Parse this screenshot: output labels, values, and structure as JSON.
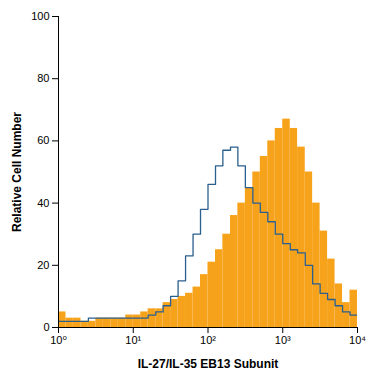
{
  "chart_data": {
    "type": "histogram",
    "x_label": "IL-27/IL-35 EB13 Subunit",
    "y_label": "Relative Cell Number",
    "log": "x",
    "grid": false,
    "xlim": [
      1,
      10000
    ],
    "ylim": [
      0,
      100
    ],
    "xticks": [
      {
        "value": 1,
        "label": "10⁰"
      },
      {
        "value": 10,
        "label": "10¹"
      },
      {
        "value": 100,
        "label": "10²"
      },
      {
        "value": 1000,
        "label": "10³"
      },
      {
        "value": 10000,
        "label": "10⁴"
      }
    ],
    "yticks": [
      0,
      20,
      40,
      60,
      80,
      100
    ],
    "bins": [
      1,
      1.26,
      1.58,
      2,
      2.51,
      3.16,
      3.98,
      5.01,
      6.31,
      7.94,
      10,
      12.6,
      15.8,
      20,
      25.1,
      31.6,
      39.8,
      50.1,
      63.1,
      79.4,
      100,
      126,
      158,
      200,
      251,
      316,
      398,
      501,
      631,
      794,
      1000,
      1260,
      1580,
      2000,
      2510,
      3160,
      3980,
      5010,
      6310,
      7940,
      10000
    ],
    "series": [
      {
        "type": "bar",
        "color": "#f7a21b",
        "values": [
          5,
          3,
          3,
          2,
          2,
          3,
          3,
          3,
          3,
          4,
          4,
          5,
          6,
          6,
          8,
          9,
          10,
          11,
          13,
          17,
          21,
          25,
          30,
          36,
          40,
          45,
          50,
          55,
          60,
          64,
          67,
          64,
          58,
          50,
          40,
          31,
          22,
          14,
          8,
          12
        ]
      },
      {
        "type": "line",
        "color": "#2b5f8e",
        "values": [
          2,
          2,
          2,
          2,
          3,
          3,
          3,
          3,
          3,
          3,
          3,
          3,
          4,
          5,
          7,
          10,
          15,
          23,
          30,
          38,
          46,
          52,
          57,
          58,
          52,
          45,
          40,
          37,
          34,
          30,
          27,
          25,
          24,
          20,
          14,
          11,
          9,
          7,
          5,
          4
        ]
      }
    ]
  }
}
